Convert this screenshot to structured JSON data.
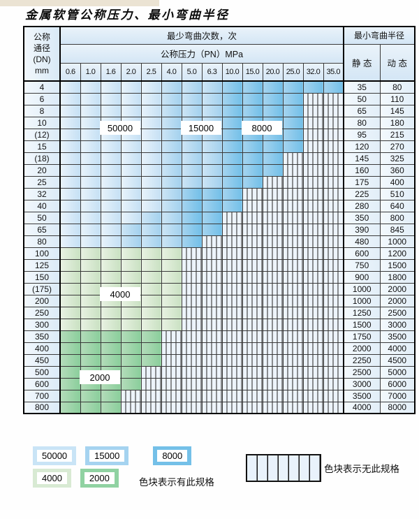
{
  "title": "金属软管公称压力、最小弯曲半径",
  "table": {
    "header": {
      "dn_lines": [
        "公称",
        "通径",
        "(DN)",
        "mm"
      ],
      "cycles_label": "最少弯曲次数，次",
      "pressure_label": "公称压力（PN）MPa",
      "pressures": [
        "0.6",
        "1.0",
        "1.6",
        "2.0",
        "2.5",
        "4.0",
        "5.0",
        "6.3",
        "10.0",
        "15.0",
        "20.0",
        "25.0",
        "32.0",
        "35.0"
      ],
      "radius_label": "最小弯曲半径",
      "static_label": "静 态",
      "dynamic_label": "动 态"
    },
    "zone_legend": {
      "A": "50000",
      "B": "15000",
      "C": "8000",
      "D": "4000",
      "E": "2000",
      "X": "无此规格"
    },
    "rows": [
      {
        "dn": "4",
        "zones": "AAAAABBBCCCCCC",
        "static": "35",
        "dynamic": "80"
      },
      {
        "dn": "6",
        "zones": "AAAAABBBCCCCXX",
        "static": "50",
        "dynamic": "110"
      },
      {
        "dn": "8",
        "zones": "AAAAABBBCCCCXX",
        "static": "65",
        "dynamic": "145"
      },
      {
        "dn": "10",
        "zones": "AAAAABBBCCCCXX",
        "static": "80",
        "dynamic": "180"
      },
      {
        "dn": "(12)",
        "zones": "AAAAABBBCCCCXX",
        "static": "95",
        "dynamic": "215"
      },
      {
        "dn": "15",
        "zones": "AAAAABBBCCCCXX",
        "static": "120",
        "dynamic": "270"
      },
      {
        "dn": "(18)",
        "zones": "AAAAABBBCCCXXX",
        "static": "145",
        "dynamic": "325"
      },
      {
        "dn": "20",
        "zones": "AAAAABBBCCCXXX",
        "static": "160",
        "dynamic": "360"
      },
      {
        "dn": "25",
        "zones": "AAAAABBBCCXXXX",
        "static": "175",
        "dynamic": "400"
      },
      {
        "dn": "32",
        "zones": "AAAAABCCCXXXXX",
        "static": "225",
        "dynamic": "510"
      },
      {
        "dn": "40",
        "zones": "AAAAABCCCXXXXX",
        "static": "280",
        "dynamic": "640"
      },
      {
        "dn": "50",
        "zones": "AAAABBCCXXXXXX",
        "static": "350",
        "dynamic": "800"
      },
      {
        "dn": "65",
        "zones": "AAABBBCCXXXXXX",
        "static": "390",
        "dynamic": "845"
      },
      {
        "dn": "80",
        "zones": "AAABBBCXXXXXXX",
        "static": "480",
        "dynamic": "1000"
      },
      {
        "dn": "100",
        "zones": "DDDDDDXXXXXXXX",
        "static": "600",
        "dynamic": "1200"
      },
      {
        "dn": "125",
        "zones": "DDDDDDXXXXXXXX",
        "static": "750",
        "dynamic": "1500"
      },
      {
        "dn": "150",
        "zones": "DDDDDDXXXXXXXX",
        "static": "900",
        "dynamic": "1800"
      },
      {
        "dn": "(175)",
        "zones": "DDDDDDXXXXXXXX",
        "static": "1000",
        "dynamic": "2000"
      },
      {
        "dn": "200",
        "zones": "DDDDDDXXXXXXXX",
        "static": "1000",
        "dynamic": "2000"
      },
      {
        "dn": "250",
        "zones": "DDDDDDXXXXXXXX",
        "static": "1250",
        "dynamic": "2500"
      },
      {
        "dn": "300",
        "zones": "DDDDDDXXXXXXXX",
        "static": "1500",
        "dynamic": "3000"
      },
      {
        "dn": "350",
        "zones": "EEEEEXXXXXXXXX",
        "static": "1750",
        "dynamic": "3500"
      },
      {
        "dn": "400",
        "zones": "EEEEEXXXXXXXXX",
        "static": "2000",
        "dynamic": "4000"
      },
      {
        "dn": "450",
        "zones": "EEEEEXXXXXXXXX",
        "static": "2250",
        "dynamic": "4500"
      },
      {
        "dn": "500",
        "zones": "EEEEXXXXXXXXXX",
        "static": "2500",
        "dynamic": "5000"
      },
      {
        "dn": "600",
        "zones": "EEEEXXXXXXXXXX",
        "static": "3000",
        "dynamic": "6000"
      },
      {
        "dn": "700",
        "zones": "EEEXXXXXXXXXXX",
        "static": "3500",
        "dynamic": "7000"
      },
      {
        "dn": "800",
        "zones": "EEEXXXXXXXXXXX",
        "static": "4000",
        "dynamic": "8000"
      }
    ]
  },
  "overlays": [
    {
      "text": "50000",
      "col_start": 2,
      "col_end": 3,
      "row_boundary": 4
    },
    {
      "text": "15000",
      "col_start": 6,
      "col_end": 7,
      "row_boundary": 4
    },
    {
      "text": "8000",
      "col_start": 9,
      "col_end": 10,
      "row_boundary": 4
    },
    {
      "text": "4000",
      "col_start": 2,
      "col_end": 3,
      "row_boundary": 18
    },
    {
      "text": "2000",
      "col_start": 1,
      "col_end": 2,
      "row_boundary": 25
    }
  ],
  "legend": {
    "swatches_blue": [
      {
        "value": "50000",
        "color": "#c9e4f6"
      },
      {
        "value": "15000",
        "color": "#a5d3f0"
      },
      {
        "value": "8000",
        "color": "#74c0e8"
      }
    ],
    "swatches_green": [
      {
        "value": "4000",
        "color": "#d8ead3"
      },
      {
        "value": "2000",
        "color": "#90d2a2"
      }
    ],
    "has_spec_label": "色块表示有此规格",
    "no_spec_label": "色块表示无此规格"
  },
  "colors": {
    "zone_50000": "#cde5f5",
    "zone_15000": "#a3d1ee",
    "zone_8000": "#72bfe8",
    "zone_4000": "#c9e1c2",
    "zone_2000": "#8ace9b",
    "hatch_bg": "#edf4fb",
    "header_bg": "#d4e6f5",
    "grid": "#3a3a3a"
  }
}
